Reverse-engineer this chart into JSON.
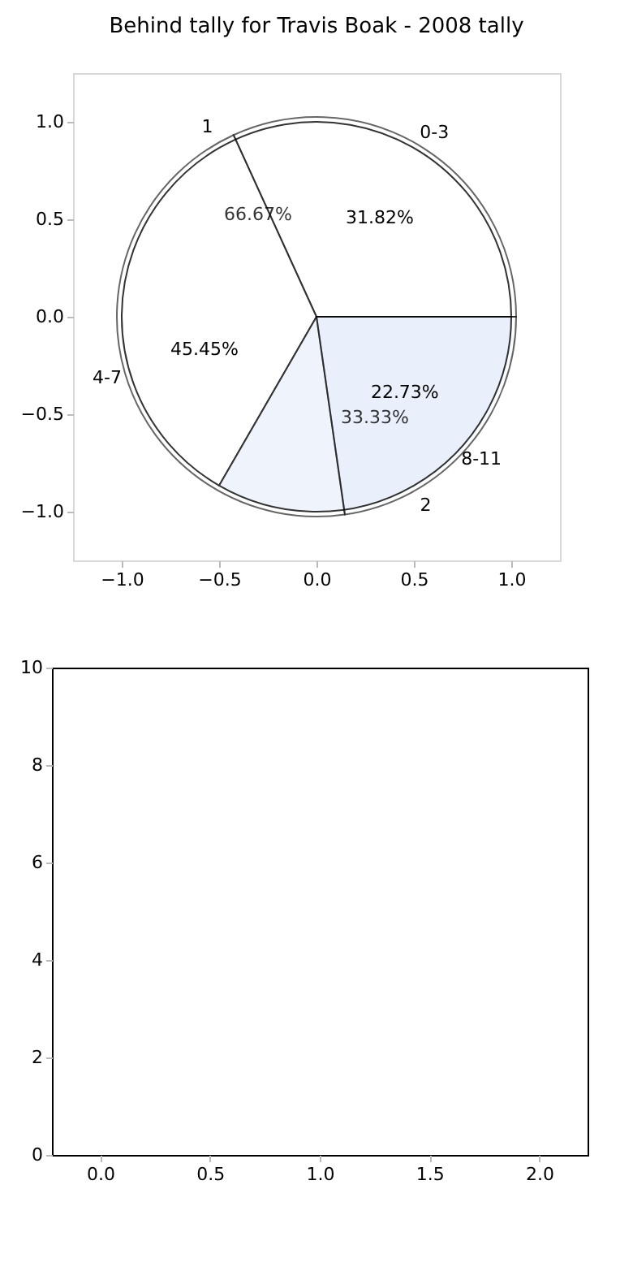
{
  "chart_data": [
    {
      "type": "scatter",
      "title": "Behind tally for Travis Boak - 2008 tally",
      "xlim": [
        -1.25,
        1.25
      ],
      "ylim": [
        -1.25,
        1.25
      ],
      "xticks": [
        {
          "value": -1,
          "label": "−1.0"
        },
        {
          "value": -0.5,
          "label": "−0.5"
        },
        {
          "value": 0,
          "label": "0.0"
        },
        {
          "value": 0.5,
          "label": "0.5"
        },
        {
          "value": 1,
          "label": "1.0"
        }
      ],
      "yticks": [
        {
          "value": -1,
          "label": "−1.0"
        },
        {
          "value": -0.5,
          "label": "−0.5"
        },
        {
          "value": 0,
          "label": "0.0"
        },
        {
          "value": 0.5,
          "label": "0.5"
        },
        {
          "value": 1,
          "label": "1.0"
        }
      ]
    },
    {
      "type": "pie",
      "categories": [
        "1",
        "2"
      ],
      "values": [
        66.67,
        33.33
      ],
      "colors": [
        "#ffffff",
        "#eaf0fc"
      ],
      "value_labels": [
        "66.67%",
        "33.33%"
      ]
    },
    {
      "type": "pie",
      "categories": [
        "0-3",
        "4-7",
        "8-11"
      ],
      "values": [
        31.82,
        45.45,
        22.73
      ],
      "colors": [
        "#ffffff",
        "#ffffff",
        "#eaf0fc"
      ],
      "value_labels": [
        "31.82%",
        "45.45%",
        "22.73%"
      ]
    },
    {
      "type": "scatter",
      "xlim": [
        -0.22,
        2.22
      ],
      "ylim": [
        0,
        10
      ],
      "xticks": [
        {
          "value": 0,
          "label": "0.0"
        },
        0.5,
        {
          "value": 1,
          "label": "1.0"
        },
        1.5,
        {
          "value": 2,
          "label": "2.0"
        }
      ],
      "yticks": [
        0,
        2,
        4,
        6,
        8,
        10
      ]
    }
  ]
}
